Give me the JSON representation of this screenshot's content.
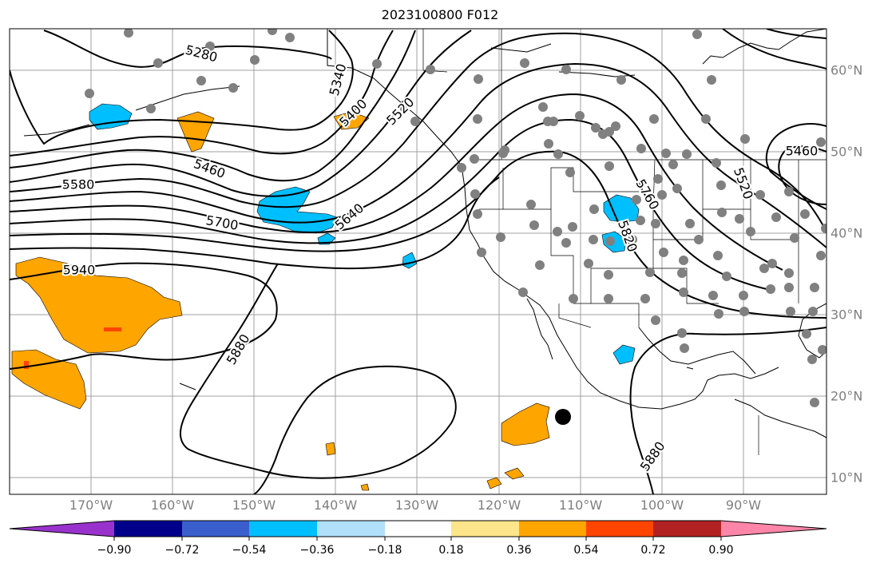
{
  "title": "2023100800 F012",
  "map": {
    "lon_labels": [
      "170°W",
      "160°W",
      "150°W",
      "140°W",
      "130°W",
      "120°W",
      "110°W",
      "100°W",
      "90°W"
    ],
    "lat_labels": [
      "60°N",
      "50°N",
      "40°N",
      "30°N",
      "20°N",
      "10°N"
    ],
    "contour_labels": [
      "5280",
      "5340",
      "5400",
      "5460",
      "5520",
      "5580",
      "5640",
      "5700",
      "5760",
      "5820",
      "5880",
      "5880",
      "5940",
      "5460",
      "5520"
    ],
    "colors": {
      "contour": "#000000",
      "grid": "#a0a0a0",
      "positive_shade": "#ffa500",
      "negative_shade": "#00bfff",
      "station_dot": "#808080"
    }
  },
  "colorbar": {
    "ticks": [
      "−0.90",
      "−0.72",
      "−0.54",
      "−0.36",
      "−0.18",
      "0.18",
      "0.36",
      "0.54",
      "0.72",
      "0.90"
    ],
    "colors": [
      "#9932cc",
      "#00008b",
      "#3a5fcd",
      "#00bfff",
      "#b0e0fa",
      "#ffffff",
      "#fce58a",
      "#ffa500",
      "#ff4500",
      "#b22222",
      "#ff86a8"
    ]
  }
}
